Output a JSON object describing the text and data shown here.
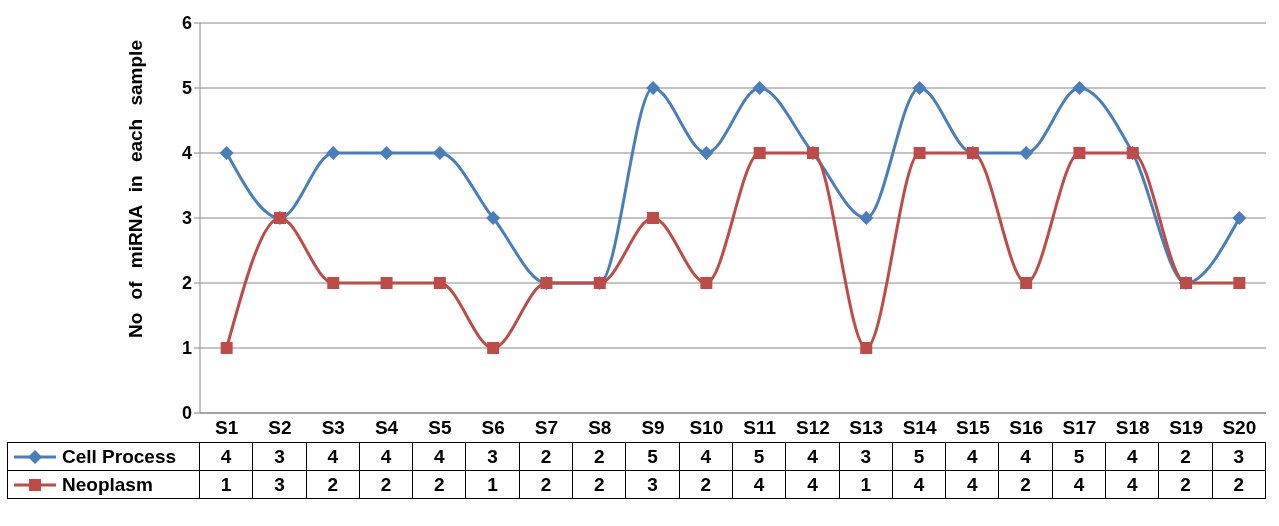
{
  "chart_data": {
    "type": "line",
    "ylabel": "No of miRNA in each sample",
    "categories": [
      "S1",
      "S2",
      "S3",
      "S4",
      "S5",
      "S6",
      "S7",
      "S8",
      "S9",
      "S10",
      "S11",
      "S12",
      "S13",
      "S14",
      "S15",
      "S16",
      "S17",
      "S18",
      "S19",
      "S20"
    ],
    "series": [
      {
        "name": "Cell Process",
        "color": "#4a7ebb",
        "marker": "diamond",
        "values": [
          4,
          3,
          4,
          4,
          4,
          3,
          2,
          2,
          5,
          4,
          5,
          4,
          3,
          5,
          4,
          4,
          5,
          4,
          2,
          3
        ]
      },
      {
        "name": "Neoplasm",
        "color": "#be4b48",
        "marker": "square",
        "values": [
          1,
          3,
          2,
          2,
          2,
          1,
          2,
          2,
          3,
          2,
          4,
          4,
          1,
          4,
          4,
          2,
          4,
          4,
          2,
          2
        ]
      }
    ],
    "ylim": [
      0,
      6
    ],
    "yticks": [
      0,
      1,
      2,
      3,
      4,
      5,
      6
    ],
    "grid": "y",
    "legend": "bottom left",
    "data_labels": true,
    "line_style": "solid"
  }
}
